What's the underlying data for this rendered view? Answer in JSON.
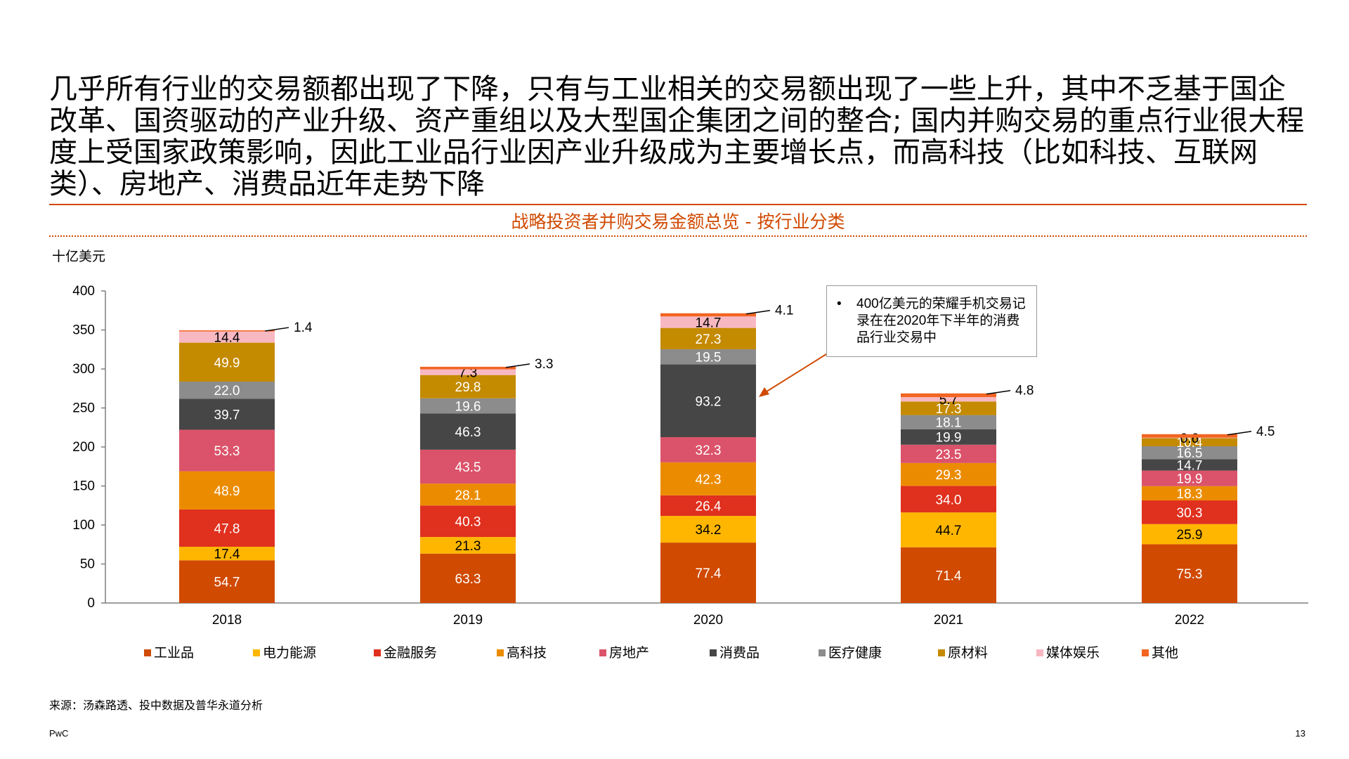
{
  "headline": "几乎所有行业的交易额都出现了下降，只有与工业相关的交易额出现了一些上升，其中不乏基于国企改革、国资驱动的产业升级、资产重组以及大型国企集团之间的整合; 国内并购交易的重点行业很大程度上受国家政策影响，因此工业品行业因产业升级成为主要增长点，而高科技（比如科技、互联网类）、房地产、消费品近年走势下降",
  "chart_title": "战略投资者并购交易金额总览 - 按行业分类",
  "unit_label": "十亿美元",
  "callout": {
    "bullet": "•",
    "text": "400亿美元的荣耀手机交易记录在在2020年下半年的消费品行业交易中"
  },
  "source": "来源：汤森路透、投中数据及普华永道分析",
  "footer": {
    "brand": "PwC",
    "page": "13"
  },
  "colors": {
    "accent": "#d04a02",
    "工业品": "#d04a02",
    "电力能源": "#ffb600",
    "金融服务": "#e0301e",
    "高科技": "#eb8c00",
    "房地产": "#db536a",
    "消费品": "#464646",
    "医疗健康": "#8c8c8c",
    "原材料": "#c48a00",
    "媒体娱乐": "#f7b8c2",
    "其他": "#f26522"
  },
  "chart_data": {
    "type": "bar",
    "stacked": true,
    "categories": [
      "2018",
      "2019",
      "2020",
      "2021",
      "2022"
    ],
    "ylim": [
      0,
      400
    ],
    "yticks": [
      0,
      50,
      100,
      150,
      200,
      250,
      300,
      350,
      400
    ],
    "series": [
      {
        "name": "工业品",
        "values": [
          54.7,
          63.3,
          77.4,
          71.4,
          75.3
        ]
      },
      {
        "name": "电力能源",
        "values": [
          17.4,
          21.3,
          34.2,
          44.7,
          25.9
        ]
      },
      {
        "name": "金融服务",
        "values": [
          47.8,
          40.3,
          26.4,
          34.0,
          30.3
        ]
      },
      {
        "name": "高科技",
        "values": [
          48.9,
          28.1,
          42.3,
          29.3,
          18.3
        ]
      },
      {
        "name": "房地产",
        "values": [
          53.3,
          43.5,
          32.3,
          23.5,
          19.9
        ]
      },
      {
        "name": "消费品",
        "values": [
          39.7,
          46.3,
          93.2,
          19.9,
          14.7
        ]
      },
      {
        "name": "医疗健康",
        "values": [
          22.0,
          19.6,
          19.5,
          18.1,
          16.5
        ]
      },
      {
        "name": "原材料",
        "values": [
          49.9,
          29.8,
          27.3,
          17.3,
          10.4
        ]
      },
      {
        "name": "媒体娱乐",
        "values": [
          14.4,
          7.3,
          14.7,
          5.7,
          0.6
        ]
      },
      {
        "name": "其他",
        "values": [
          1.4,
          3.3,
          4.1,
          4.8,
          4.5
        ]
      }
    ],
    "data_labels": [
      [
        "54.7",
        "63.3",
        "77.4",
        "71.4",
        "75.3"
      ],
      [
        "17.4",
        "21.3",
        "34.2",
        "44.7",
        "25.9"
      ],
      [
        "47.8",
        "40.3",
        "26.4",
        "34.0",
        "30.3"
      ],
      [
        "48.9",
        "28.1",
        "42.3",
        "29.3",
        "18.3"
      ],
      [
        "53.3",
        "43.5",
        "32.3",
        "23.5",
        "19.9"
      ],
      [
        "39.7",
        "46.3",
        "93.2",
        "19.9",
        "14.7"
      ],
      [
        "22.0",
        "19.6",
        "19.5",
        "18.1",
        "16.5"
      ],
      [
        "49.9",
        "29.8",
        "27.3",
        "17.3",
        "10.4"
      ],
      [
        "14.4",
        "7.3",
        "14.7",
        "5.7",
        "0.6"
      ],
      [
        "1.4",
        "3.3",
        "4.1",
        "4.8",
        "4.5"
      ]
    ],
    "legend_position": "bottom",
    "grid": false
  }
}
